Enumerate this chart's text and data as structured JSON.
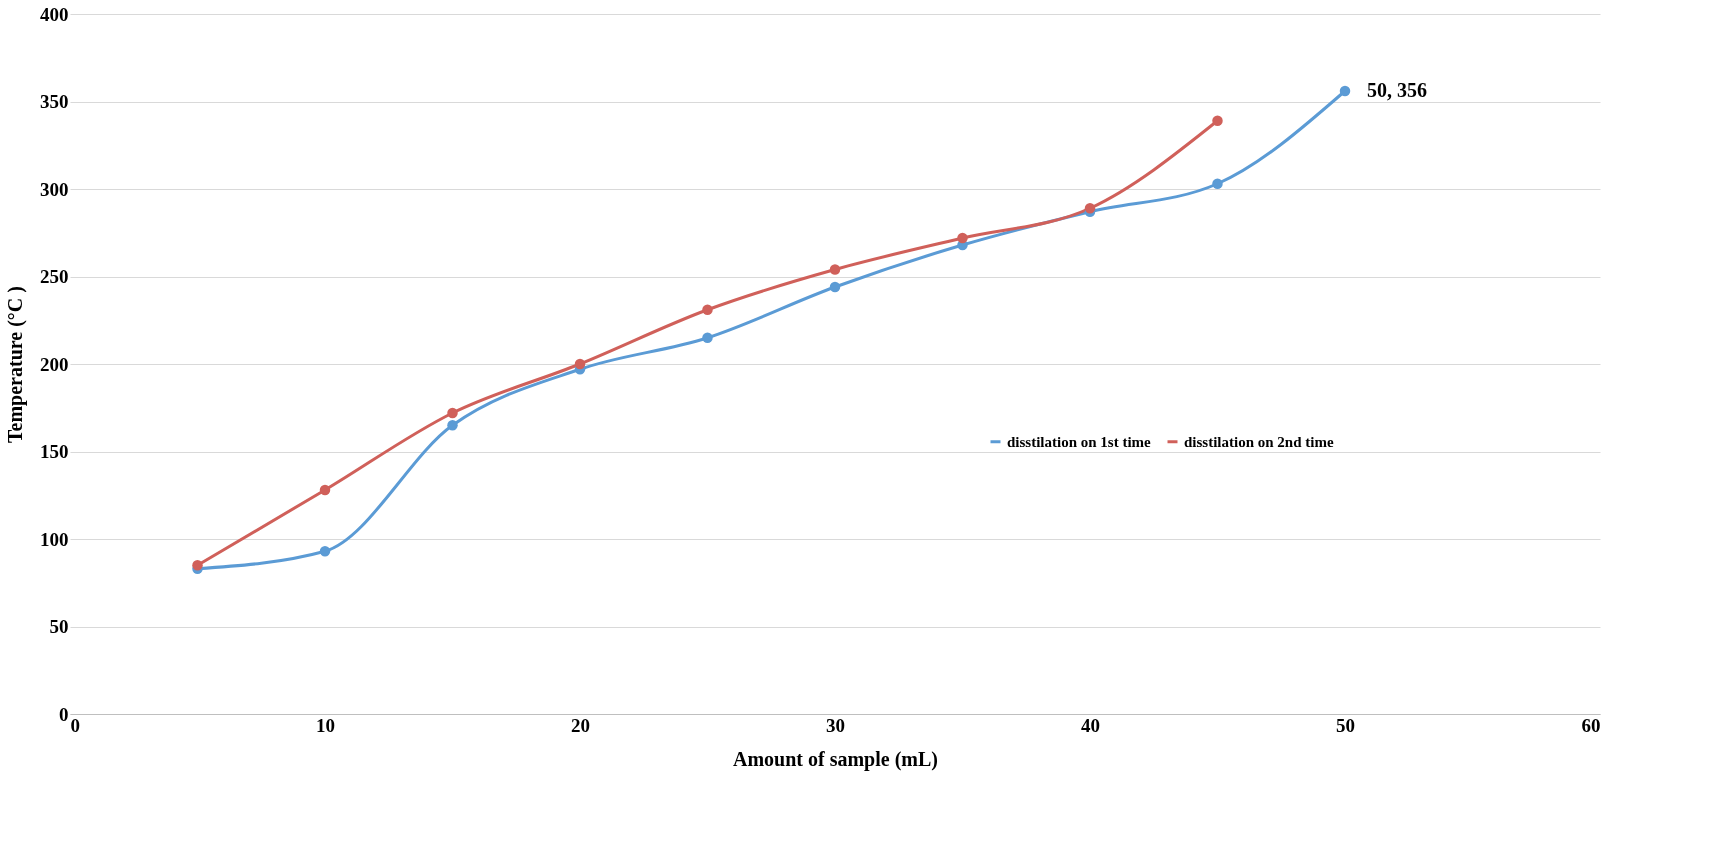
{
  "chart_data": {
    "type": "line",
    "xlabel": "Amount of sample (mL)",
    "ylabel": "Temperature (°C )",
    "x": [
      5,
      10,
      15,
      20,
      25,
      30,
      35,
      40,
      45,
      50
    ],
    "series": [
      {
        "name": "disstilation on 1st time",
        "color": "#5b9bd5",
        "values": [
          83,
          93,
          165,
          197,
          215,
          244,
          268,
          287,
          303,
          356
        ]
      },
      {
        "name": "disstilation on 2nd time",
        "color": "#d0605a",
        "values": [
          85,
          128,
          172,
          200,
          231,
          254,
          272,
          289,
          339,
          null
        ]
      }
    ],
    "xlim": [
      0,
      60
    ],
    "xticks": [
      0,
      10,
      20,
      30,
      40,
      50,
      60
    ],
    "ylim": [
      0,
      400
    ],
    "yticks": [
      0,
      50,
      100,
      150,
      200,
      250,
      300,
      350,
      400
    ],
    "grid": "y",
    "legend": "right",
    "marker": "circle",
    "line_style": "solid",
    "annotations": [
      {
        "text": "50, 356",
        "x": 50,
        "y": 356
      }
    ]
  }
}
